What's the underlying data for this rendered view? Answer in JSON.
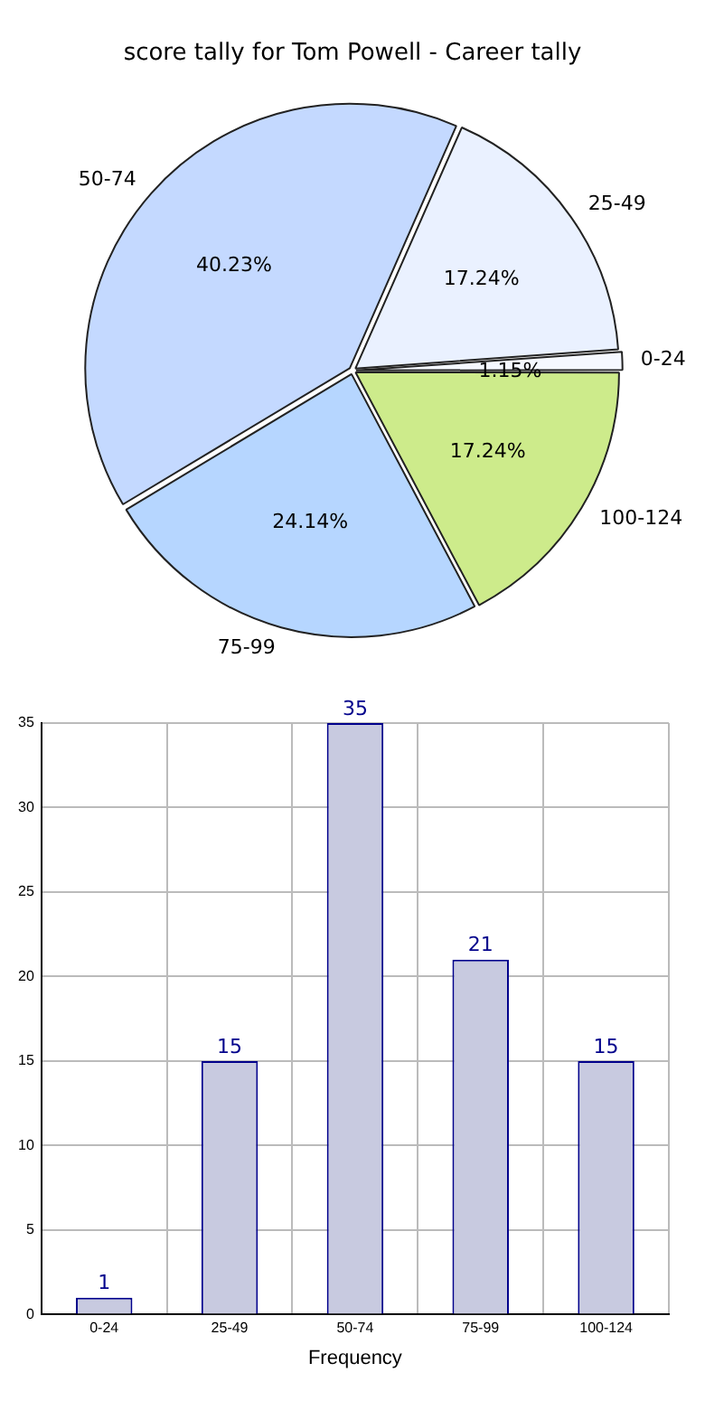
{
  "chart_data": [
    {
      "type": "pie",
      "title": "score tally for Tom Powell - Career tally",
      "categories": [
        "100-124",
        "75-99",
        "50-74",
        "25-49",
        "0-24"
      ],
      "values": [
        17.24,
        24.14,
        40.23,
        17.24,
        1.15
      ],
      "colors": [
        "#cdeb8b",
        "#b6d6ff",
        "#c4d9ff",
        "#eaf1ff",
        "#f5f8ff"
      ],
      "value_labels": [
        "17.24%",
        "24.14%",
        "40.23%",
        "17.24%",
        "1.15%"
      ],
      "legend": false
    },
    {
      "type": "bar",
      "categories": [
        "0-24",
        "25-49",
        "50-74",
        "75-99",
        "100-124"
      ],
      "values": [
        1,
        15,
        35,
        21,
        15
      ],
      "color": "#c8cae0",
      "xlabel": "Frequency",
      "ylim": [
        0,
        35
      ],
      "yticks": [
        0,
        5,
        10,
        15,
        20,
        25,
        30,
        35
      ],
      "grid": true,
      "data_labels": true,
      "legend": false
    }
  ]
}
